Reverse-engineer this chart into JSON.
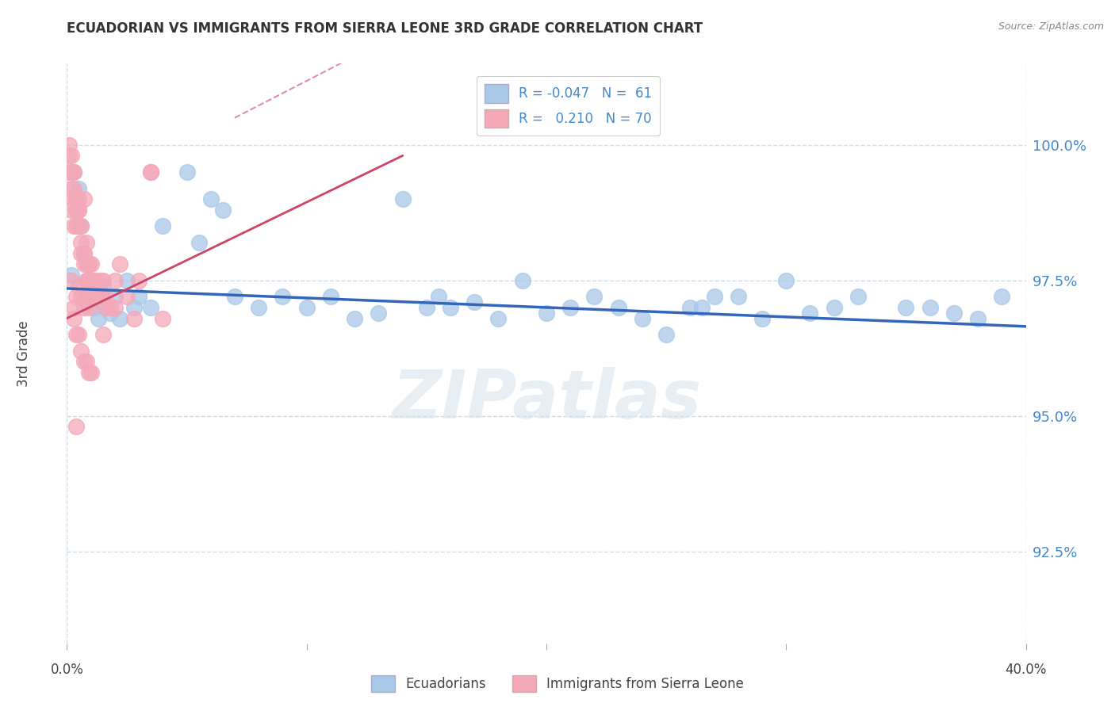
{
  "title": "ECUADORIAN VS IMMIGRANTS FROM SIERRA LEONE 3RD GRADE CORRELATION CHART",
  "source": "Source: ZipAtlas.com",
  "ylabel": "3rd Grade",
  "ytick_values": [
    92.5,
    95.0,
    97.5,
    100.0
  ],
  "xlim": [
    0.0,
    40.0
  ],
  "ylim": [
    90.8,
    101.5
  ],
  "legend_r_blue": "-0.047",
  "legend_n_blue": "61",
  "legend_r_pink": "0.210",
  "legend_n_pink": "70",
  "blue_color": "#a8c8e8",
  "pink_color": "#f4a8b8",
  "trend_blue_color": "#3366bb",
  "trend_pink_color": "#cc4466",
  "watermark": "ZIPatlas",
  "background_color": "#ffffff",
  "grid_color": "#d0dde8",
  "title_color": "#333333",
  "axis_color": "#4488cc",
  "blue_scatter_x": [
    0.2,
    0.3,
    0.4,
    0.5,
    0.6,
    0.7,
    0.8,
    0.9,
    1.0,
    1.1,
    1.2,
    1.3,
    1.4,
    1.5,
    1.6,
    1.8,
    2.0,
    2.2,
    2.5,
    2.8,
    3.0,
    3.5,
    4.0,
    5.0,
    6.0,
    7.0,
    8.0,
    9.0,
    10.0,
    11.0,
    12.0,
    13.0,
    14.0,
    15.0,
    16.0,
    17.0,
    18.0,
    19.0,
    20.0,
    21.0,
    22.0,
    23.0,
    24.0,
    25.0,
    26.0,
    27.0,
    28.0,
    29.0,
    30.0,
    31.0,
    32.0,
    33.0,
    35.0,
    36.0,
    37.0,
    38.0,
    39.0,
    5.5,
    6.5,
    15.5,
    26.5
  ],
  "blue_scatter_y": [
    97.6,
    99.5,
    98.8,
    99.2,
    98.5,
    98.0,
    97.5,
    97.8,
    97.2,
    97.0,
    97.3,
    96.8,
    97.1,
    97.4,
    97.0,
    96.9,
    97.2,
    96.8,
    97.5,
    97.0,
    97.2,
    97.0,
    98.5,
    99.5,
    99.0,
    97.2,
    97.0,
    97.2,
    97.0,
    97.2,
    96.8,
    96.9,
    99.0,
    97.0,
    97.0,
    97.1,
    96.8,
    97.5,
    96.9,
    97.0,
    97.2,
    97.0,
    96.8,
    96.5,
    97.0,
    97.2,
    97.2,
    96.8,
    97.5,
    96.9,
    97.0,
    97.2,
    97.0,
    97.0,
    96.9,
    96.8,
    97.2,
    98.2,
    98.8,
    97.2,
    97.0
  ],
  "pink_scatter_x": [
    0.1,
    0.1,
    0.1,
    0.2,
    0.2,
    0.2,
    0.3,
    0.3,
    0.3,
    0.4,
    0.4,
    0.4,
    0.5,
    0.5,
    0.5,
    0.6,
    0.6,
    0.6,
    0.7,
    0.7,
    0.8,
    0.8,
    0.8,
    0.9,
    0.9,
    1.0,
    1.0,
    1.0,
    1.1,
    1.2,
    1.3,
    1.4,
    1.5,
    1.6,
    1.8,
    2.0,
    2.2,
    2.5,
    2.8,
    3.0,
    3.5,
    4.0,
    0.2,
    0.3,
    0.4,
    0.5,
    0.6,
    0.7,
    0.8,
    0.9,
    1.0,
    1.2,
    1.4,
    1.6,
    0.3,
    0.4,
    0.5,
    0.6,
    0.7,
    0.8,
    0.9,
    1.0,
    1.5,
    2.0,
    0.2,
    0.3,
    0.5,
    0.7,
    3.5,
    0.4
  ],
  "pink_scatter_y": [
    100.0,
    99.8,
    99.5,
    99.8,
    99.5,
    99.2,
    99.5,
    99.2,
    99.0,
    99.0,
    98.8,
    98.5,
    99.0,
    98.8,
    98.5,
    98.5,
    98.2,
    98.0,
    98.0,
    97.8,
    98.2,
    97.8,
    97.5,
    97.8,
    97.5,
    97.8,
    97.5,
    97.2,
    97.5,
    97.2,
    97.2,
    97.5,
    97.5,
    97.2,
    97.0,
    97.5,
    97.8,
    97.2,
    96.8,
    97.5,
    99.5,
    96.8,
    97.5,
    97.0,
    97.2,
    97.4,
    97.2,
    97.0,
    97.2,
    97.0,
    97.2,
    97.5,
    97.2,
    97.0,
    96.8,
    96.5,
    96.5,
    96.2,
    96.0,
    96.0,
    95.8,
    95.8,
    96.5,
    97.0,
    98.8,
    98.5,
    98.8,
    99.0,
    99.5,
    94.8
  ],
  "blue_trend_x": [
    0.0,
    40.0
  ],
  "blue_trend_y": [
    97.35,
    96.65
  ],
  "pink_trend_x": [
    0.0,
    14.0
  ],
  "pink_trend_y": [
    96.8,
    99.8
  ]
}
